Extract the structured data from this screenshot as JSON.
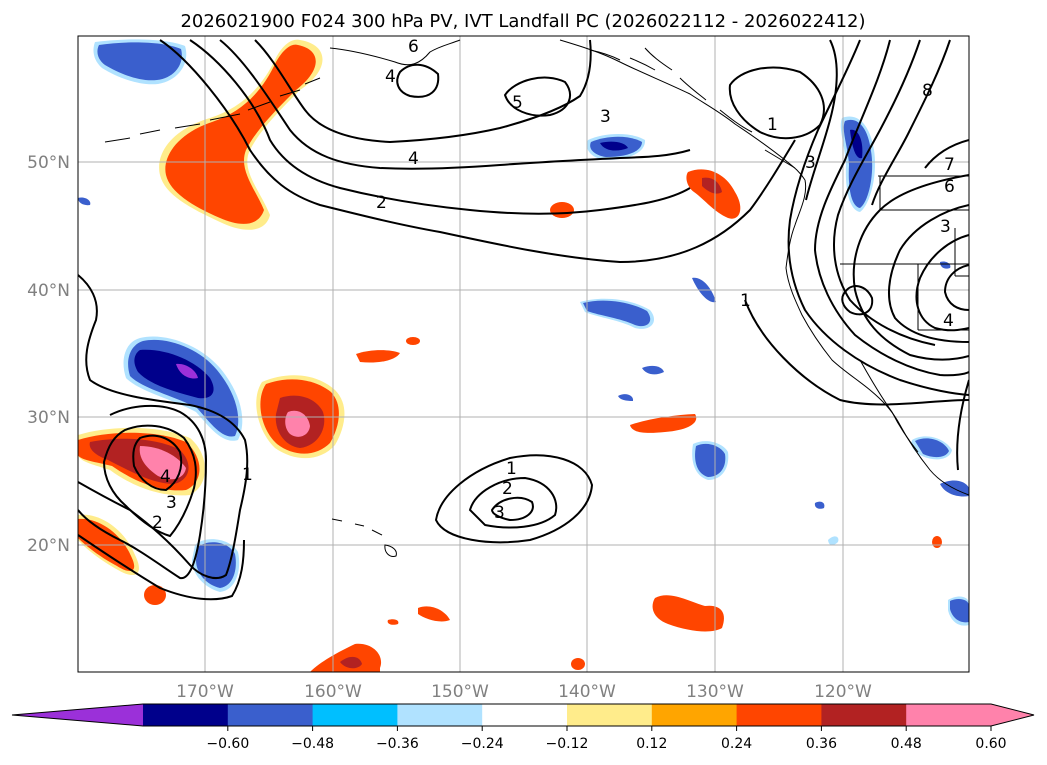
{
  "title": "2026021900 F024 300 hPa PV, IVT Landfall PC (2026022112 - 2026022412)",
  "map": {
    "lat_labels": [
      "50°N",
      "40°N",
      "30°N",
      "20°N"
    ],
    "lon_labels": [
      "170°W",
      "160°W",
      "150°W",
      "140°W",
      "130°W",
      "120°W"
    ],
    "contour_labels": [
      "6",
      "4",
      "5",
      "4",
      "2",
      "3",
      "1",
      "3",
      "8",
      "7",
      "6",
      "3",
      "1",
      "4",
      "1",
      "3",
      "2",
      "1",
      "2",
      "3",
      "4",
      "3",
      "1",
      "2"
    ]
  },
  "colorbar": {
    "ticks": [
      "−0.60",
      "−0.48",
      "−0.36",
      "−0.24",
      "−0.12",
      "0.12",
      "0.24",
      "0.36",
      "0.48",
      "0.60"
    ],
    "colors": [
      "#9b30d9",
      "#00008b",
      "#3a5fcd",
      "#00bfff",
      "#b0e2ff",
      "#ffffff",
      "#ffec8b",
      "#ffa500",
      "#ff4500",
      "#b22222",
      "#ff82ab",
      "#ff82ab"
    ]
  }
}
